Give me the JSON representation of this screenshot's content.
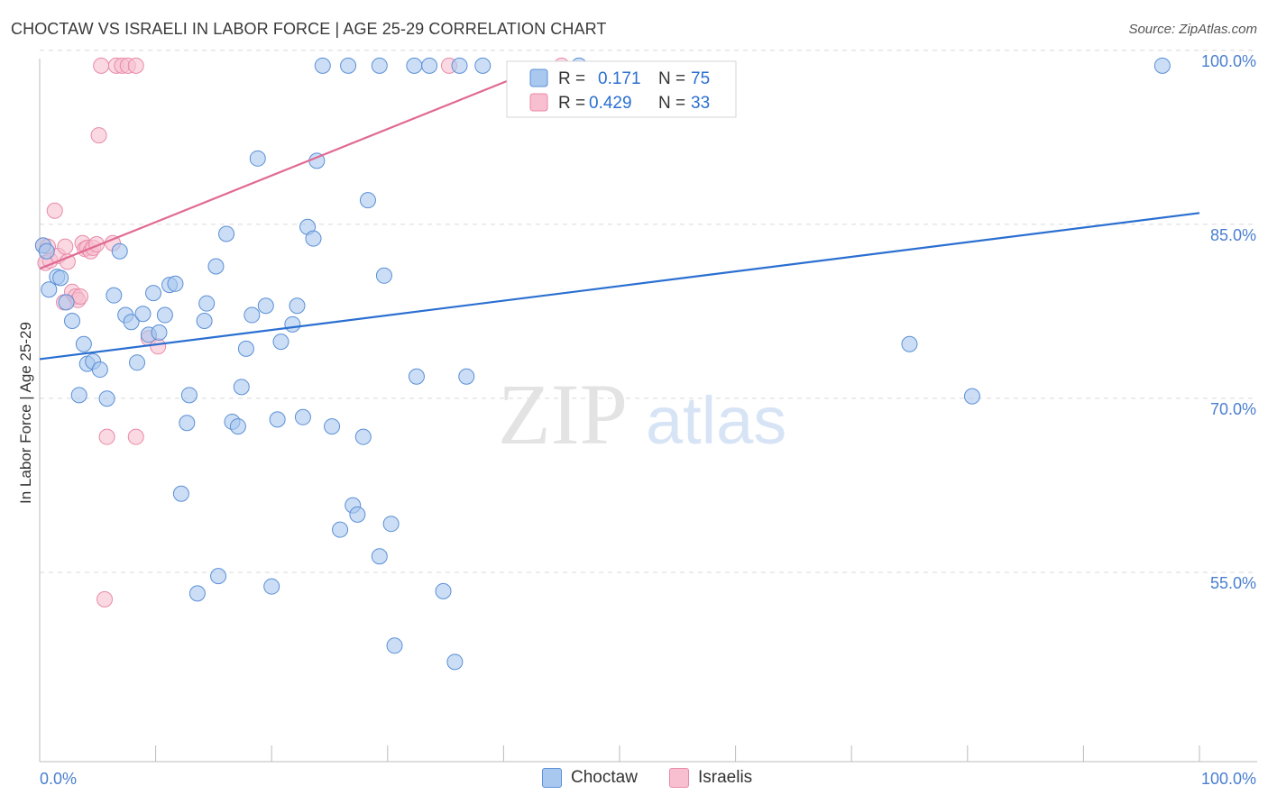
{
  "header": {
    "title": "CHOCTAW VS ISRAELI IN LABOR FORCE | AGE 25-29 CORRELATION CHART",
    "source": "Source: ZipAtlas.com"
  },
  "watermark": {
    "zip": "ZIP",
    "atlas": "atlas"
  },
  "legend_box": {
    "rows": [
      {
        "r_label": "R =",
        "r_value": "0.171",
        "n_label": "N =",
        "n_value": "75"
      },
      {
        "r_label": "R =",
        "r_value": "0.429",
        "n_label": "N =",
        "n_value": "33"
      }
    ]
  },
  "bottom_legend": {
    "series1": "Choctaw",
    "series2": "Israelis"
  },
  "colors": {
    "choctaw_fill": "#a9c8ef",
    "choctaw_stroke": "#5b8fd6",
    "choctaw_line": "#2a6fd1",
    "israeli_fill": "#f7bfd0",
    "israeli_stroke": "#e98aa8",
    "israeli_line": "#e06a93",
    "tick_text": "#4a7fd0",
    "grid": "#d9d9d9"
  },
  "chart_data": {
    "type": "scatter",
    "title": "CHOCTAW VS ISRAELI IN LABOR FORCE | AGE 25-29 CORRELATION CHART",
    "xlabel": "",
    "ylabel": "In Labor Force | Age 25-29",
    "xlim": [
      0,
      100
    ],
    "ylim": [
      40,
      101
    ],
    "x_tick_labels": [
      {
        "value": 0,
        "label": "0.0%"
      },
      {
        "value": 100,
        "label": "100.0%"
      }
    ],
    "y_tick_labels": [
      {
        "value": 55,
        "label": "55.0%"
      },
      {
        "value": 70,
        "label": "70.0%"
      },
      {
        "value": 85,
        "label": "85.0%"
      },
      {
        "value": 100,
        "label": "100.0%"
      }
    ],
    "grid": true,
    "legend_position": "top-center",
    "series": [
      {
        "name": "Choctaw",
        "r": 0.171,
        "n": 75,
        "trend": {
          "x": [
            0,
            100
          ],
          "y": [
            74.7,
            87.3
          ]
        },
        "points": [
          [
            0.3,
            84.5
          ],
          [
            0.6,
            84.0
          ],
          [
            0.8,
            80.7
          ],
          [
            1.5,
            81.8
          ],
          [
            1.8,
            81.7
          ],
          [
            2.3,
            79.6
          ],
          [
            2.8,
            78.0
          ],
          [
            3.4,
            71.6
          ],
          [
            3.8,
            76.0
          ],
          [
            4.1,
            74.3
          ],
          [
            4.6,
            74.5
          ],
          [
            5.2,
            73.8
          ],
          [
            5.8,
            71.3
          ],
          [
            6.4,
            80.2
          ],
          [
            6.9,
            84.0
          ],
          [
            7.4,
            78.5
          ],
          [
            7.9,
            77.9
          ],
          [
            8.4,
            74.4
          ],
          [
            8.9,
            78.6
          ],
          [
            9.4,
            76.8
          ],
          [
            9.8,
            80.4
          ],
          [
            10.3,
            77.0
          ],
          [
            10.8,
            78.5
          ],
          [
            11.2,
            81.1
          ],
          [
            11.7,
            81.2
          ],
          [
            12.2,
            63.1
          ],
          [
            12.7,
            69.2
          ],
          [
            12.9,
            71.6
          ],
          [
            13.6,
            54.5
          ],
          [
            14.2,
            78.0
          ],
          [
            14.4,
            79.5
          ],
          [
            15.2,
            82.7
          ],
          [
            15.4,
            56.0
          ],
          [
            16.1,
            85.5
          ],
          [
            16.6,
            69.3
          ],
          [
            17.1,
            68.9
          ],
          [
            17.4,
            72.3
          ],
          [
            17.8,
            75.6
          ],
          [
            18.3,
            78.5
          ],
          [
            18.8,
            92.0
          ],
          [
            19.5,
            79.3
          ],
          [
            20.0,
            55.1
          ],
          [
            20.5,
            69.5
          ],
          [
            20.8,
            76.2
          ],
          [
            21.8,
            77.7
          ],
          [
            22.2,
            79.3
          ],
          [
            22.7,
            69.7
          ],
          [
            23.1,
            86.1
          ],
          [
            23.6,
            85.1
          ],
          [
            23.9,
            91.8
          ],
          [
            25.2,
            68.9
          ],
          [
            25.9,
            60.0
          ],
          [
            27.0,
            62.1
          ],
          [
            27.4,
            61.3
          ],
          [
            27.9,
            68.0
          ],
          [
            28.3,
            88.4
          ],
          [
            29.3,
            57.7
          ],
          [
            29.7,
            81.9
          ],
          [
            30.3,
            60.5
          ],
          [
            30.6,
            50.0
          ],
          [
            32.5,
            73.2
          ],
          [
            34.8,
            54.7
          ],
          [
            35.8,
            48.6
          ],
          [
            36.8,
            73.2
          ],
          [
            24.4,
            100
          ],
          [
            26.6,
            100
          ],
          [
            29.3,
            100
          ],
          [
            32.3,
            100
          ],
          [
            33.6,
            100
          ],
          [
            36.2,
            100
          ],
          [
            38.2,
            100
          ],
          [
            75.0,
            76.0
          ],
          [
            80.4,
            71.5
          ],
          [
            96.8,
            100
          ],
          [
            46.5,
            100
          ]
        ]
      },
      {
        "name": "Israelis",
        "r": 0.429,
        "n": 33,
        "trend": {
          "x": [
            0,
            43.6
          ],
          "y": [
            82.5,
            100
          ]
        },
        "points": [
          [
            0.3,
            84.5
          ],
          [
            0.5,
            83.0
          ],
          [
            0.7,
            84.4
          ],
          [
            0.9,
            83.2
          ],
          [
            1.3,
            87.5
          ],
          [
            1.6,
            83.6
          ],
          [
            2.1,
            79.6
          ],
          [
            2.2,
            84.4
          ],
          [
            2.4,
            83.1
          ],
          [
            2.8,
            80.5
          ],
          [
            3.1,
            80.1
          ],
          [
            3.3,
            79.8
          ],
          [
            3.5,
            80.1
          ],
          [
            3.7,
            84.7
          ],
          [
            3.9,
            84.2
          ],
          [
            4.1,
            84.3
          ],
          [
            4.4,
            84.0
          ],
          [
            4.6,
            84.3
          ],
          [
            4.9,
            84.6
          ],
          [
            5.1,
            94.0
          ],
          [
            5.3,
            100
          ],
          [
            5.8,
            68.0
          ],
          [
            5.6,
            54.0
          ],
          [
            6.3,
            84.7
          ],
          [
            6.6,
            100
          ],
          [
            7.1,
            100
          ],
          [
            7.6,
            100
          ],
          [
            8.3,
            100
          ],
          [
            8.3,
            68.0
          ],
          [
            9.4,
            76.5
          ],
          [
            10.2,
            75.8
          ],
          [
            35.3,
            100
          ],
          [
            45.0,
            100
          ]
        ]
      }
    ]
  }
}
